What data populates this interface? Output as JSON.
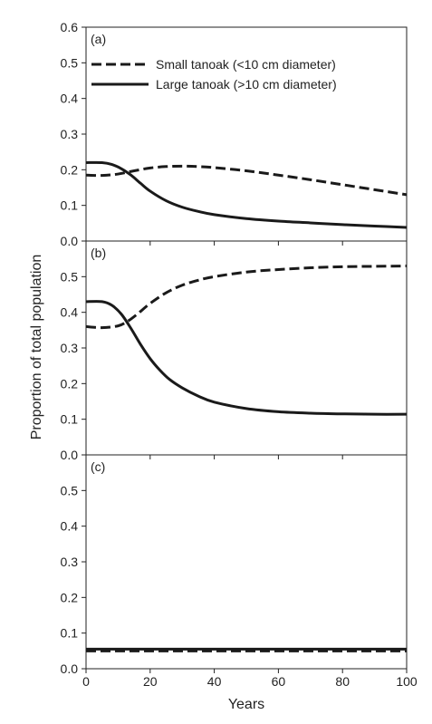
{
  "chart_data": {
    "type": "line",
    "xlabel": "Years",
    "ylabel": "Proportion of total population",
    "xlim": [
      0,
      100
    ],
    "ylim": [
      0,
      0.6
    ],
    "x_ticks": [
      0,
      20,
      40,
      60,
      80,
      100
    ],
    "legend_position": "top-right of panel (a)",
    "legend": [
      {
        "label": "Small tanoak (<10 cm diameter)",
        "style": "dashed"
      },
      {
        "label": "Large tanoak (>10 cm diameter)",
        "style": "solid"
      }
    ],
    "series_color": "#1a1a1a",
    "panels": [
      {
        "label": "(a)",
        "y_ticks": [
          "0.0",
          "0.1",
          "0.2",
          "0.3",
          "0.4",
          "0.5",
          "0.6"
        ],
        "series": [
          {
            "name": "Small tanoak (<10 cm diameter)",
            "style": "dashed",
            "x": [
              0,
              5,
              10,
              15,
              20,
              25,
              30,
              35,
              40,
              50,
              60,
              70,
              80,
              90,
              100
            ],
            "y": [
              0.185,
              0.184,
              0.188,
              0.197,
              0.205,
              0.209,
              0.21,
              0.209,
              0.206,
              0.197,
              0.185,
              0.172,
              0.158,
              0.144,
              0.13
            ]
          },
          {
            "name": "Large tanoak (>10 cm diameter)",
            "style": "solid",
            "x": [
              0,
              5,
              8,
              11,
              14,
              17,
              20,
              25,
              30,
              35,
              40,
              50,
              60,
              70,
              80,
              90,
              100
            ],
            "y": [
              0.22,
              0.22,
              0.215,
              0.203,
              0.185,
              0.162,
              0.14,
              0.113,
              0.095,
              0.083,
              0.074,
              0.063,
              0.056,
              0.051,
              0.046,
              0.042,
              0.038
            ]
          }
        ]
      },
      {
        "label": "(b)",
        "y_ticks": [
          "0.0",
          "0.1",
          "0.2",
          "0.3",
          "0.4",
          "0.5"
        ],
        "series": [
          {
            "name": "Small tanoak (<10 cm diameter)",
            "style": "dashed",
            "x": [
              0,
              5,
              10,
              13,
              16,
              20,
              25,
              30,
              35,
              40,
              50,
              60,
              70,
              80,
              90,
              100
            ],
            "y": [
              0.36,
              0.357,
              0.362,
              0.375,
              0.395,
              0.425,
              0.455,
              0.476,
              0.49,
              0.5,
              0.513,
              0.52,
              0.525,
              0.528,
              0.529,
              0.53
            ]
          },
          {
            "name": "Large tanoak (>10 cm diameter)",
            "style": "solid",
            "x": [
              0,
              5,
              8,
              11,
              14,
              17,
              20,
              23,
              26,
              30,
              35,
              40,
              50,
              60,
              70,
              80,
              90,
              100
            ],
            "y": [
              0.43,
              0.43,
              0.42,
              0.395,
              0.355,
              0.31,
              0.27,
              0.238,
              0.212,
              0.188,
              0.165,
              0.148,
              0.13,
              0.121,
              0.117,
              0.115,
              0.114,
              0.114
            ]
          }
        ]
      },
      {
        "label": "(c)",
        "y_ticks": [
          "0.0",
          "0.1",
          "0.2",
          "0.3",
          "0.4",
          "0.5"
        ],
        "series": [
          {
            "name": "Small tanoak (<10 cm diameter)",
            "style": "dashed",
            "x": [
              0,
              100
            ],
            "y": [
              0.05,
              0.05
            ]
          },
          {
            "name": "Large tanoak (>10 cm diameter)",
            "style": "solid",
            "x": [
              0,
              100
            ],
            "y": [
              0.055,
              0.055
            ]
          }
        ]
      }
    ]
  }
}
